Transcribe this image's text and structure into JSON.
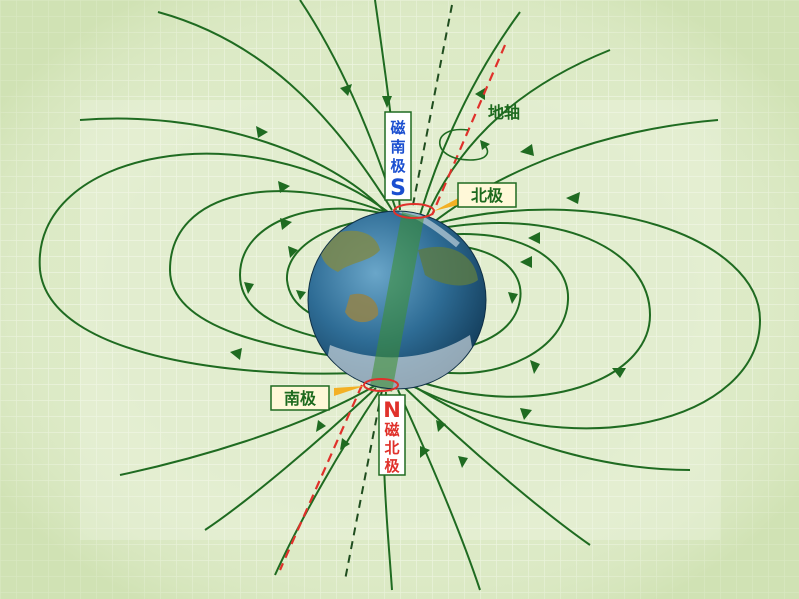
{
  "labels": {
    "magnetic_south_pole": [
      "磁",
      "南",
      "极"
    ],
    "magnetic_south_letter": "S",
    "magnetic_north_letter": "N",
    "magnetic_north_pole": [
      "磁",
      "北",
      "极"
    ],
    "geographic_north_pole": "北极",
    "geographic_south_pole": "南极",
    "earth_axis": "地轴"
  },
  "colors": {
    "background": "#dbe9c4",
    "grid": "#eef5e1",
    "field_line": "#1f6b21",
    "axis_line": "#e0312b",
    "blue_text": "#1b4fd0",
    "red_text": "#e0312b",
    "label_text": "#1d6a1e"
  }
}
